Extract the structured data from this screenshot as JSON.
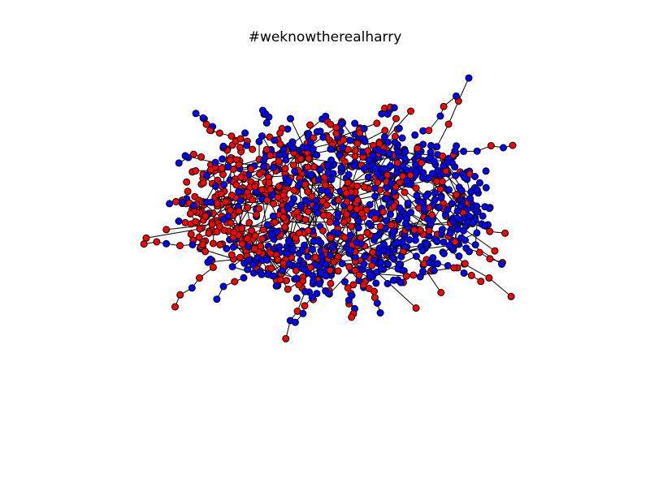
{
  "figure": {
    "title": "#weknowtherealharry"
  },
  "graph": {
    "node_colors": [
      "#ff0000",
      "#0000ff"
    ],
    "node_edge_color": "#000000",
    "edge_color": "#000000"
  }
}
